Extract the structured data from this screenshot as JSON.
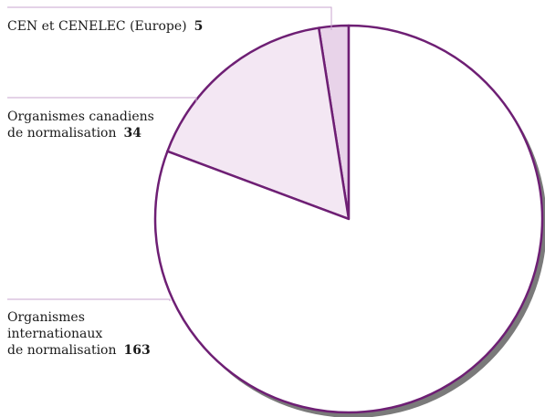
{
  "chart_data": {
    "type": "pie",
    "slices": [
      {
        "label": "CEN et CENELEC (Europe)",
        "label_lines": [
          "CEN et CENELEC (Europe)"
        ],
        "value": 5
      },
      {
        "label": "Organismes canadiens de normalisation",
        "label_lines": [
          "Organismes canadiens",
          "de normalisation"
        ],
        "value": 34
      },
      {
        "label": "Organismes internationaux de normalisation",
        "label_lines": [
          "Organismes",
          "internationaux",
          "de normalisation"
        ],
        "value": 163
      }
    ],
    "start_angle_deg": 0,
    "direction": "counterclockwise",
    "colors": {
      "outline": "#6e1f74",
      "leader": "#c9a6cf",
      "shadow": "#7a7a7a",
      "slice_fills": [
        "#e8d3e9",
        "#f3e7f3",
        "#ffffff"
      ]
    }
  }
}
